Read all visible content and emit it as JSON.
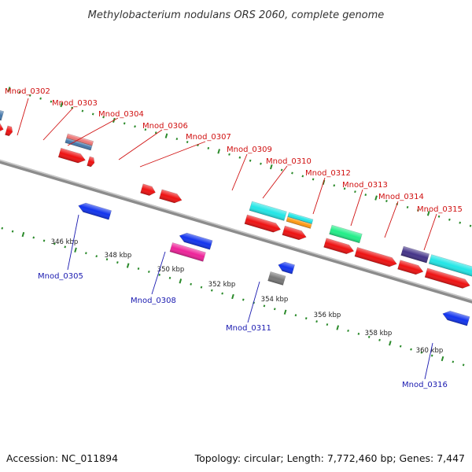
{
  "title": "Methylobacterium nodulans ORS 2060, complete genome",
  "footer": {
    "accession": "Accession: NC_011894",
    "summary": "Topology: circular; Length: 7,772,460 bp; Genes: 7,447"
  },
  "colors": {
    "backbone": "#8c8c8c",
    "tick": "#2a8a2a",
    "label_top": "#d01010",
    "label_bottom": "#1a1ab0",
    "gene_red": "#ee1111",
    "gene_blue": "#1133ee",
    "gene_cyan": "#22e6e6",
    "gene_pink": "#ee2299",
    "gene_teal": "#22ee88",
    "gene_purple": "#443388",
    "gene_gray": "#777777",
    "gene_orange": "#ff9911",
    "gene_steel": "#4477aa",
    "gene_salmon": "#ee7777"
  },
  "kbp_labels": [
    "346 kbp",
    "348 kbp",
    "350 kbp",
    "352 kbp",
    "354 kbp",
    "356 kbp",
    "358 kbp",
    "360 kbp"
  ],
  "top_labels": [
    "Mnod_0302",
    "Mnod_0303",
    "Mnod_0304",
    "Mnod_0306",
    "Mnod_0307",
    "Mnod_0309",
    "Mnod_0310",
    "Mnod_0312",
    "Mnod_0313",
    "Mnod_0314",
    "Mnod_0315"
  ],
  "bottom_labels": [
    "Mnod_0305",
    "Mnod_0308",
    "Mnod_0311",
    "Mnod_0316"
  ]
}
